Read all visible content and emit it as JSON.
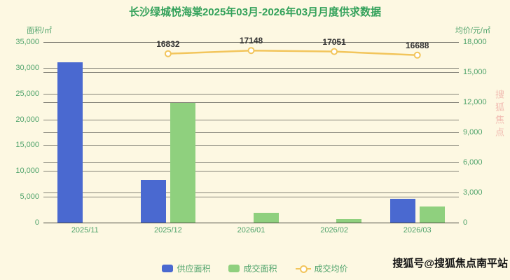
{
  "title": "长沙绿城悦海棠2025年03月-2026年03月月度供求数据",
  "axes": {
    "left_name": "面积/㎡",
    "right_name": "均价/元/㎡",
    "left_ticks": [
      "35,000",
      "30,000",
      "25,000",
      "20,000",
      "15,000",
      "10,000",
      "5,000",
      "0"
    ],
    "right_ticks": [
      "18,000",
      "15,000",
      "12,000",
      "9,000",
      "6,000",
      "3,000",
      "0"
    ]
  },
  "chart_data": {
    "type": "bar",
    "title": "长沙绿城悦海棠2025年03月-2026年03月月度供求数据",
    "categories": [
      "2025/11",
      "2025/12",
      "2026/01",
      "2026/02",
      "2026/03"
    ],
    "series": [
      {
        "name": "供应面积",
        "type": "bar",
        "axis": "left",
        "color": "#4a69d0",
        "values": [
          31100,
          8300,
          0,
          0,
          4600
        ]
      },
      {
        "name": "成交面积",
        "type": "bar",
        "axis": "left",
        "color": "#8fd07e",
        "values": [
          0,
          23200,
          1900,
          700,
          3100
        ]
      },
      {
        "name": "成交均价",
        "type": "line",
        "axis": "right",
        "color": "#f2c55c",
        "values": [
          null,
          16832,
          17148,
          17051,
          16688
        ]
      }
    ],
    "left_axis": {
      "label": "面积/㎡",
      "min": 0,
      "max": 35000,
      "step": 5000
    },
    "right_axis": {
      "label": "均价/元/㎡",
      "min": 0,
      "max": 18000,
      "step": 3000
    },
    "point_labels": [
      "16832",
      "17148",
      "17051",
      "16688"
    ],
    "grid": true,
    "legend_position": "bottom"
  },
  "colors": {
    "background": "#fdf8e2",
    "title": "#33a15a",
    "axis_text": "#4fa36b",
    "gridline": "#6f6f65",
    "point_label": "#333333",
    "credit": "#141414",
    "watermark": "#e88a8a"
  },
  "footer": {
    "credit": "搜狐号@搜狐焦点南平站"
  },
  "watermark": "搜狐焦点"
}
